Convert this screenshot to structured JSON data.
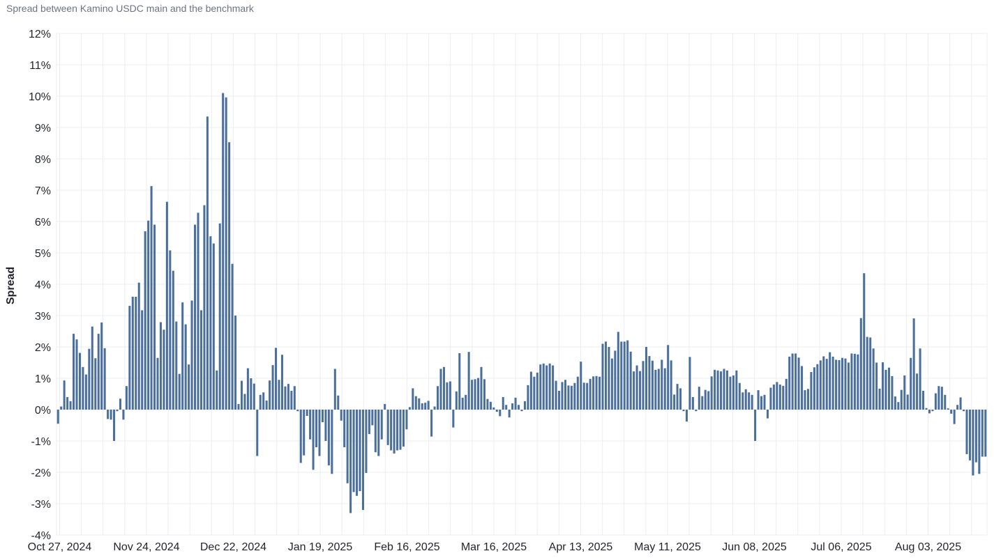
{
  "title": "Spread between Kamino USDC main and the benchmark",
  "chart_data": {
    "type": "bar",
    "title": "Spread between Kamino USDC main and the benchmark",
    "xlabel": "",
    "ylabel": "Spread",
    "ylim": [
      -4,
      12
    ],
    "y_unit": "%",
    "y_ticks": [
      -4,
      -3,
      -2,
      -1,
      0,
      1,
      2,
      3,
      4,
      5,
      6,
      7,
      8,
      9,
      10,
      11,
      12
    ],
    "y_tick_labels": [
      "-4%",
      "-3%",
      "-2%",
      "-1%",
      "0%",
      "1%",
      "2%",
      "3%",
      "4%",
      "5%",
      "6%",
      "7%",
      "8%",
      "9%",
      "10%",
      "11%",
      "12%"
    ],
    "grid": true,
    "legend": "none",
    "bar_color": "#4a6f9c",
    "x_start_date": "2024-10-26",
    "x_end_date": "2025-08-22",
    "x_tick_dates": [
      "2024-10-27",
      "2024-11-24",
      "2024-12-22",
      "2025-01-19",
      "2025-02-16",
      "2025-03-16",
      "2025-04-13",
      "2025-05-11",
      "2025-06-08",
      "2025-07-06",
      "2025-08-03"
    ],
    "x_tick_labels": [
      "Oct 27, 2024",
      "Nov 24, 2024",
      "Dec 22, 2024",
      "Jan 19, 2025",
      "Feb 16, 2025",
      "Mar 16, 2025",
      "Apr 13, 2025",
      "May 11, 2025",
      "Jun 08, 2025",
      "Jul 06, 2025",
      "Aug 03, 2025"
    ],
    "values": [
      -0.45,
      0.1,
      0.93,
      0.4,
      0.27,
      2.42,
      2.24,
      1.81,
      1.36,
      1.12,
      1.94,
      2.65,
      1.64,
      2.42,
      2.78,
      1.96,
      -0.3,
      -0.32,
      -1.0,
      -0.05,
      0.35,
      -0.32,
      0.75,
      3.31,
      3.6,
      3.6,
      4.05,
      3.17,
      5.69,
      6.03,
      7.13,
      5.9,
      1.65,
      2.79,
      2.55,
      6.63,
      5.08,
      4.43,
      2.81,
      1.14,
      3.42,
      2.72,
      1.44,
      3.48,
      5.9,
      6.28,
      3.17,
      6.52,
      9.35,
      5.53,
      5.3,
      1.25,
      5.94,
      10.1,
      9.96,
      8.53,
      4.65,
      3.0,
      0.18,
      0.92,
      0.5,
      1.32,
      1.0,
      0.83,
      -1.48,
      0.47,
      0.55,
      0.29,
      0.93,
      1.42,
      1.97,
      0.95,
      1.75,
      0.74,
      0.82,
      0.6,
      0.75,
      -0.05,
      -1.7,
      -1.46,
      -0.2,
      -0.95,
      -1.92,
      -1.2,
      -1.48,
      -0.4,
      -1.0,
      -1.78,
      -2.05,
      1.3,
      0.45,
      -0.35,
      -1.2,
      -2.35,
      -3.3,
      -2.63,
      -2.75,
      -2.6,
      -3.2,
      -2.02,
      -0.78,
      -0.5,
      -1.36,
      -1.48,
      -0.95,
      0.18,
      -1.13,
      -1.3,
      -1.4,
      -1.3,
      -1.28,
      -1.18,
      -0.63,
      0.08,
      0.68,
      0.43,
      0.36,
      0.2,
      0.22,
      0.28,
      -0.86,
      0.1,
      0.75,
      1.3,
      1.36,
      0.87,
      0.9,
      -0.57,
      0.58,
      1.8,
      0.38,
      0.47,
      1.84,
      0.95,
      0.97,
      1.01,
      1.36,
      0.97,
      0.34,
      0.25,
      0.07,
      -0.07,
      -0.21,
      0.4,
      0.15,
      -0.25,
      0.2,
      0.38,
      0.15,
      -0.05,
      0.27,
      0.78,
      1.21,
      1.05,
      1.18,
      1.44,
      1.47,
      1.41,
      1.47,
      1.41,
      0.92,
      0.6,
      0.88,
      0.95,
      0.77,
      0.76,
      0.85,
      1.05,
      1.53,
      0.86,
      0.85,
      0.98,
      1.06,
      1.07,
      1.05,
      2.1,
      2.17,
      2.0,
      1.63,
      1.88,
      2.48,
      2.17,
      2.17,
      2.21,
      1.85,
      1.22,
      1.41,
      1.23,
      1.55,
      2.0,
      1.71,
      1.56,
      1.27,
      1.3,
      1.59,
      1.32,
      2.06,
      1.57,
      0.48,
      0.82,
      0.68,
      -0.05,
      -0.38,
      1.68,
      0.4,
      -0.05,
      0.73,
      0.43,
      0.63,
      0.59,
      1.06,
      1.27,
      1.25,
      1.22,
      1.3,
      1.25,
      1.05,
      1.09,
      1.25,
      0.85,
      0.55,
      0.65,
      0.55,
      0.47,
      -1.0,
      0.62,
      0.43,
      0.47,
      -0.28,
      0.7,
      0.8,
      0.88,
      0.8,
      0.76,
      0.98,
      1.69,
      1.79,
      1.79,
      1.66,
      1.39,
      0.62,
      0.66,
      1.2,
      1.35,
      1.45,
      1.57,
      1.7,
      1.62,
      1.83,
      1.69,
      1.59,
      1.58,
      1.65,
      1.63,
      1.5,
      1.79,
      1.78,
      1.76,
      2.92,
      4.35,
      2.32,
      2.3,
      1.95,
      1.5,
      0.67,
      1.51,
      1.27,
      1.34,
      1.07,
      0.42,
      0.24,
      0.63,
      1.09,
      0.48,
      1.65,
      2.91,
      1.15,
      1.95,
      0.6,
      0.05,
      -0.12,
      -0.05,
      0.52,
      0.75,
      0.73,
      0.47,
      0.04,
      -0.13,
      -0.46,
      0.15,
      0.39,
      -0.05,
      -1.42,
      -1.62,
      -2.1,
      -1.68,
      -2.05,
      -1.5,
      -1.5
    ]
  }
}
